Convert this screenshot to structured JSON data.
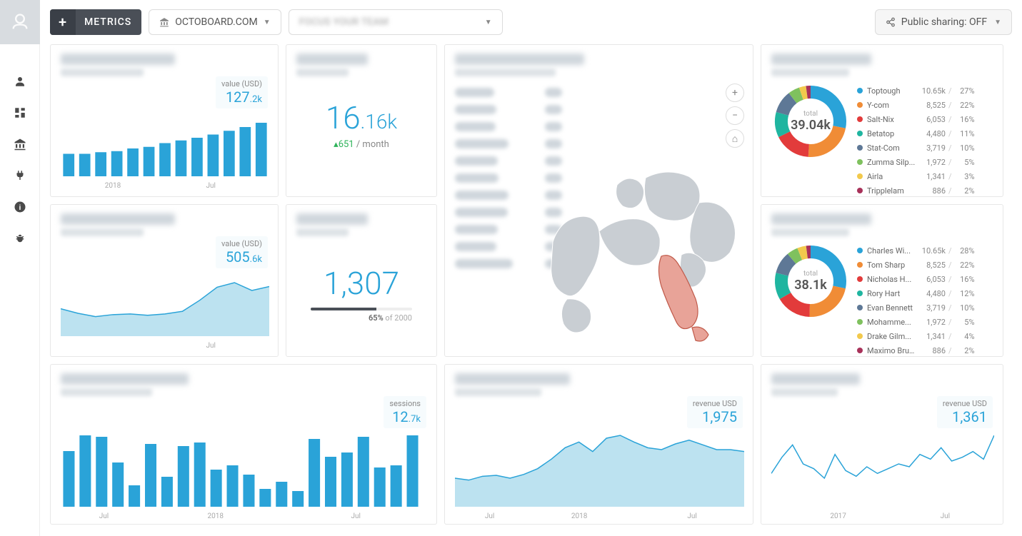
{
  "topbar": {
    "metrics_label": "METRICS",
    "site_selector": "OCTOBOARD.COM",
    "share_label": "Public sharing: OFF"
  },
  "colors": {
    "accent": "#2aa3d8",
    "area_fill": "#bce2f0",
    "axis_text": "#aaaaaa",
    "card_border": "#e7e7e7"
  },
  "recurring_revenue": {
    "type": "bar",
    "badge_label": "value (USD)",
    "badge_value_main": "127",
    "badge_value_dec": ".2k",
    "values": [
      42,
      42,
      45,
      47,
      52,
      55,
      62,
      67,
      72,
      78,
      85,
      92,
      100
    ],
    "bar_color": "#2aa3d8",
    "x_tick_labels": [
      "2018",
      "Jul"
    ],
    "x_tick_positions": [
      0.25,
      0.72
    ]
  },
  "upgrades": {
    "type": "stat",
    "value_main": "16",
    "value_dec": ".16k",
    "delta_value": "651",
    "delta_suffix": " / month",
    "delta_direction": "up"
  },
  "pipeline_value": {
    "type": "area",
    "badge_label": "value (USD)",
    "badge_value_main": "505",
    "badge_value_dec": ".6k",
    "points": [
      42,
      35,
      30,
      33,
      34,
      32,
      34,
      38,
      55,
      75,
      82,
      70,
      76
    ],
    "line_color": "#2aa3d8",
    "fill_color": "#bce2f0",
    "x_tick_labels": [
      "Jul"
    ],
    "x_tick_positions": [
      0.72
    ]
  },
  "downgrades": {
    "type": "progress_stat",
    "value": "1,307",
    "progress_pct": 65,
    "progress_total": "2000",
    "progress_label_pct": "65%",
    "progress_label_of": " of "
  },
  "sales_region": {
    "type": "map",
    "region_rows": 11,
    "map_fill": "#c9ced3",
    "highlight_fill": "#e79a8f"
  },
  "top_products": {
    "type": "donut",
    "total_label": "total",
    "total_value": "39.04k",
    "slices": [
      {
        "name": "Toptough",
        "value": "10.65k",
        "pct": "27%",
        "color": "#2aa3d8"
      },
      {
        "name": "Y-com",
        "value": "8,525",
        "pct": "22%",
        "color": "#f08c36"
      },
      {
        "name": "Salt-Nix",
        "value": "6,053",
        "pct": "16%",
        "color": "#e23b3b"
      },
      {
        "name": "Betatop",
        "value": "4,480",
        "pct": "11%",
        "color": "#1fb5a0"
      },
      {
        "name": "Stat-Com",
        "value": "3,719",
        "pct": "10%",
        "color": "#5e7896"
      },
      {
        "name": "Zumma Silp...",
        "value": "1,972",
        "pct": "5%",
        "color": "#7fc15e"
      },
      {
        "name": "Airla",
        "value": "1,341",
        "pct": "3%",
        "color": "#f2c94c"
      },
      {
        "name": "Tripplelam",
        "value": "886",
        "pct": "2%",
        "color": "#a8325a"
      }
    ]
  },
  "top_sellers": {
    "type": "donut",
    "total_label": "total",
    "total_value": "38.1k",
    "slices": [
      {
        "name": "Charles Wi...",
        "value": "10.65k",
        "pct": "28%",
        "color": "#2aa3d8"
      },
      {
        "name": "Tom Sharp",
        "value": "8,525",
        "pct": "22%",
        "color": "#f08c36"
      },
      {
        "name": "Nicholas H...",
        "value": "6,053",
        "pct": "16%",
        "color": "#e23b3b"
      },
      {
        "name": "Rory Hart",
        "value": "4,480",
        "pct": "12%",
        "color": "#1fb5a0"
      },
      {
        "name": "Evan Bennett",
        "value": "3,719",
        "pct": "10%",
        "color": "#5e7896"
      },
      {
        "name": "Mohamme...",
        "value": "1,972",
        "pct": "5%",
        "color": "#7fc15e"
      },
      {
        "name": "Drake Gilm...",
        "value": "1,341",
        "pct": "4%",
        "color": "#f2c94c"
      },
      {
        "name": "Maximo Bruce",
        "value": "886",
        "pct": "2%",
        "color": "#a8325a"
      }
    ]
  },
  "website_traffic": {
    "type": "bar",
    "badge_label": "sessions",
    "badge_value_main": "12",
    "badge_value_dec": ".7k",
    "values": [
      78,
      100,
      98,
      62,
      30,
      88,
      42,
      85,
      90,
      52,
      58,
      45,
      25,
      35,
      22,
      95,
      70,
      76,
      98,
      55,
      58,
      100
    ],
    "bar_color": "#2aa3d8",
    "x_tick_labels": [
      "Jul",
      "2018",
      "Jul"
    ],
    "x_tick_positions": [
      0.12,
      0.43,
      0.82
    ]
  },
  "website_goals": {
    "type": "area",
    "badge_label": "revenue USD",
    "badge_value_main": "1,975",
    "badge_value_dec": "",
    "points": [
      30,
      28,
      32,
      33,
      30,
      34,
      40,
      50,
      62,
      68,
      58,
      72,
      75,
      68,
      62,
      60,
      66,
      70,
      65,
      60,
      60,
      58
    ],
    "line_color": "#2aa3d8",
    "fill_color": "#bce2f0",
    "x_tick_labels": [
      "Jul",
      "2018",
      "Jul"
    ],
    "x_tick_positions": [
      0.12,
      0.43,
      0.82
    ]
  },
  "ppc_revenue": {
    "type": "line",
    "badge_label": "revenue USD",
    "badge_value_main": "1,361",
    "badge_value_dec": "",
    "points": [
      35,
      52,
      65,
      45,
      40,
      30,
      55,
      38,
      32,
      42,
      35,
      40,
      45,
      42,
      55,
      50,
      62,
      48,
      52,
      58,
      50,
      75
    ],
    "line_color": "#2aa3d8",
    "x_tick_labels": [
      "2017",
      "Jul"
    ],
    "x_tick_positions": [
      0.3,
      0.78
    ]
  }
}
